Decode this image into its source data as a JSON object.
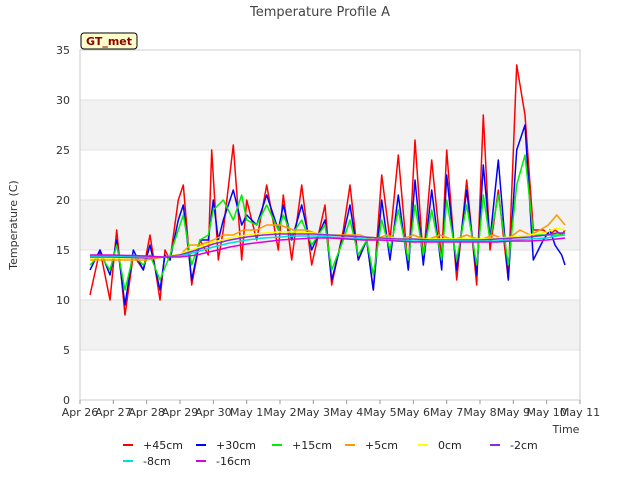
{
  "chart_data": {
    "type": "line",
    "title": "Temperature Profile A",
    "xlabel": "Time",
    "ylabel": "Temperature (C)",
    "ylim": [
      0,
      35
    ],
    "yticks": [
      0,
      5,
      10,
      15,
      20,
      25,
      30,
      35
    ],
    "xlim": [
      "Apr 26",
      "May 11"
    ],
    "xticks": [
      "Apr 26",
      "Apr 27",
      "Apr 28",
      "Apr 29",
      "Apr 30",
      "May 1",
      "May 2",
      "May 3",
      "May 4",
      "May 5",
      "May 6",
      "May 7",
      "May 8",
      "May 9",
      "May 10",
      "May 11"
    ],
    "badge": "GT_met",
    "grid": "horizontal alternating bands",
    "legend_position": "bottom",
    "series": [
      {
        "name": "+45cm",
        "color": "#ff0000",
        "x": [
          0.3,
          0.6,
          0.9,
          1.1,
          1.35,
          1.6,
          1.9,
          2.1,
          2.4,
          2.55,
          2.7,
          2.95,
          3.1,
          3.35,
          3.6,
          3.85,
          3.95,
          4.15,
          4.3,
          4.6,
          4.85,
          5.0,
          5.3,
          5.6,
          5.95,
          6.1,
          6.35,
          6.65,
          6.95,
          7.35,
          7.55,
          7.9,
          8.1,
          8.35,
          8.6,
          8.8,
          9.05,
          9.3,
          9.55,
          9.85,
          10.05,
          10.3,
          10.55,
          10.85,
          11.0,
          11.3,
          11.6,
          11.9,
          12.1,
          12.3,
          12.55,
          12.85,
          13.1,
          13.35,
          13.6,
          13.9,
          14.1,
          14.25,
          14.45,
          14.55
        ],
        "y": [
          10.5,
          15.0,
          10.0,
          17.0,
          8.5,
          14.5,
          13.0,
          16.5,
          10.0,
          15.0,
          14.0,
          20.0,
          21.5,
          11.5,
          16.0,
          14.5,
          25.0,
          14.0,
          17.0,
          25.5,
          14.0,
          20.0,
          16.0,
          21.5,
          15.0,
          20.5,
          14.0,
          21.5,
          13.5,
          19.5,
          11.5,
          17.0,
          21.5,
          14.0,
          16.0,
          11.0,
          22.5,
          16.0,
          24.5,
          13.0,
          26.0,
          14.0,
          24.0,
          14.0,
          25.0,
          12.0,
          22.0,
          11.5,
          28.5,
          15.0,
          21.0,
          12.0,
          33.5,
          28.5,
          17.0,
          17.0,
          16.5,
          17.0,
          16.5,
          17.0
        ]
      },
      {
        "name": "+30cm",
        "color": "#0000ff",
        "x": [
          0.3,
          0.6,
          0.9,
          1.1,
          1.35,
          1.6,
          1.9,
          2.1,
          2.4,
          2.55,
          2.7,
          2.95,
          3.1,
          3.35,
          3.6,
          3.85,
          4.0,
          4.15,
          4.3,
          4.6,
          4.85,
          5.0,
          5.3,
          5.6,
          5.95,
          6.1,
          6.35,
          6.65,
          6.95,
          7.35,
          7.55,
          7.9,
          8.1,
          8.35,
          8.6,
          8.8,
          9.05,
          9.3,
          9.55,
          9.85,
          10.05,
          10.3,
          10.55,
          10.85,
          11.0,
          11.3,
          11.6,
          11.9,
          12.1,
          12.3,
          12.55,
          12.85,
          13.1,
          13.35,
          13.6,
          13.9,
          14.1,
          14.25,
          14.45,
          14.55
        ],
        "y": [
          13.0,
          15.0,
          12.5,
          16.0,
          9.5,
          15.0,
          13.0,
          15.5,
          11.0,
          14.5,
          14.0,
          18.0,
          19.5,
          12.0,
          16.0,
          16.0,
          20.0,
          16.0,
          18.0,
          21.0,
          17.5,
          18.5,
          17.5,
          20.5,
          17.0,
          19.5,
          16.0,
          19.5,
          15.0,
          18.0,
          12.0,
          16.5,
          19.5,
          14.0,
          16.0,
          11.0,
          20.0,
          14.0,
          20.5,
          13.0,
          22.0,
          13.5,
          21.0,
          13.0,
          22.5,
          13.0,
          21.0,
          12.5,
          23.5,
          16.0,
          24.0,
          12.0,
          25.0,
          27.5,
          14.0,
          16.0,
          17.0,
          15.5,
          14.5,
          13.5
        ]
      },
      {
        "name": "+15cm",
        "color": "#00ee00",
        "x": [
          0.3,
          0.6,
          0.9,
          1.1,
          1.35,
          1.6,
          1.9,
          2.1,
          2.4,
          2.7,
          2.95,
          3.1,
          3.35,
          3.6,
          3.85,
          4.0,
          4.3,
          4.6,
          4.85,
          5.0,
          5.3,
          5.6,
          5.95,
          6.1,
          6.35,
          6.65,
          6.95,
          7.35,
          7.55,
          7.9,
          8.1,
          8.35,
          8.6,
          8.8,
          9.05,
          9.3,
          9.55,
          9.85,
          10.05,
          10.3,
          10.55,
          10.85,
          11.0,
          11.3,
          11.6,
          11.9,
          12.1,
          12.3,
          12.55,
          12.85,
          13.1,
          13.35,
          13.6,
          13.9,
          14.1,
          14.3,
          14.55
        ],
        "y": [
          13.5,
          14.5,
          13.0,
          15.5,
          11.0,
          14.5,
          13.5,
          14.5,
          12.0,
          14.5,
          17.0,
          18.5,
          13.5,
          16.0,
          16.5,
          19.0,
          20.0,
          18.0,
          20.5,
          18.0,
          17.5,
          19.5,
          17.0,
          18.5,
          16.5,
          18.0,
          15.5,
          17.5,
          13.0,
          16.0,
          18.0,
          14.5,
          16.0,
          12.5,
          18.0,
          15.0,
          19.0,
          14.0,
          19.5,
          14.5,
          19.0,
          14.0,
          20.0,
          14.0,
          19.5,
          13.5,
          20.5,
          16.0,
          20.5,
          13.5,
          21.5,
          24.5,
          16.5,
          16.5,
          16.5,
          16.5,
          16.5
        ]
      },
      {
        "name": "+5cm",
        "color": "#ff9900",
        "x": [
          0.3,
          1.0,
          2.0,
          2.5,
          3.0,
          3.3,
          3.6,
          4.0,
          4.3,
          4.6,
          4.9,
          5.3,
          5.6,
          6.0,
          6.4,
          6.8,
          7.2,
          7.6,
          8.0,
          8.4,
          8.8,
          9.2,
          9.6,
          10.0,
          10.4,
          10.8,
          11.2,
          11.6,
          12.0,
          12.4,
          12.8,
          13.2,
          13.5,
          13.8,
          14.05,
          14.3,
          14.55
        ],
        "y": [
          14.0,
          14.0,
          14.0,
          14.3,
          14.5,
          15.5,
          15.5,
          16.0,
          16.5,
          16.5,
          17.0,
          17.0,
          17.5,
          17.5,
          17.0,
          17.0,
          16.5,
          16.5,
          16.5,
          16.5,
          16.0,
          16.5,
          16.0,
          16.5,
          16.0,
          16.5,
          16.0,
          16.5,
          16.0,
          16.5,
          16.0,
          17.0,
          16.5,
          17.0,
          17.5,
          18.5,
          17.5
        ]
      },
      {
        "name": "0cm",
        "color": "#ffff00",
        "x": [
          0.3,
          1.0,
          2.0,
          2.5,
          3.0,
          3.5,
          4.0,
          4.5,
          5.0,
          5.5,
          6.0,
          6.5,
          7.0,
          7.5,
          8.0,
          8.5,
          9.0,
          9.5,
          10.0,
          10.5,
          11.0,
          11.5,
          12.0,
          12.5,
          13.0,
          13.5,
          14.0,
          14.3,
          14.55
        ],
        "y": [
          14.2,
          14.2,
          14.2,
          14.3,
          14.6,
          15.2,
          15.8,
          16.2,
          16.5,
          16.7,
          16.8,
          16.8,
          16.7,
          16.5,
          16.4,
          16.3,
          16.2,
          16.2,
          16.1,
          16.1,
          16.1,
          16.1,
          16.1,
          16.2,
          16.3,
          16.5,
          16.8,
          17.2,
          17.0
        ]
      },
      {
        "name": "-2cm",
        "color": "#8a2be2",
        "x": [
          0.3,
          1.0,
          2.0,
          2.5,
          3.0,
          3.5,
          4.0,
          4.5,
          5.0,
          5.5,
          6.0,
          6.5,
          7.0,
          7.5,
          8.0,
          8.5,
          9.0,
          9.5,
          10.0,
          10.5,
          11.0,
          11.5,
          12.0,
          12.5,
          13.0,
          13.5,
          14.0,
          14.3,
          14.55
        ],
        "y": [
          14.3,
          14.3,
          14.2,
          14.3,
          14.5,
          15.0,
          15.6,
          16.0,
          16.3,
          16.5,
          16.6,
          16.6,
          16.6,
          16.5,
          16.4,
          16.3,
          16.2,
          16.1,
          16.1,
          16.0,
          16.0,
          16.0,
          16.0,
          16.1,
          16.2,
          16.3,
          16.5,
          16.7,
          16.7
        ]
      },
      {
        "name": "-8cm",
        "color": "#00dddd",
        "x": [
          0.3,
          1.0,
          2.0,
          2.5,
          3.0,
          3.5,
          4.0,
          4.5,
          5.0,
          5.5,
          6.0,
          6.5,
          7.0,
          7.5,
          8.0,
          8.5,
          9.0,
          9.5,
          10.0,
          10.5,
          11.0,
          11.5,
          12.0,
          12.5,
          13.0,
          13.5,
          14.0,
          14.3,
          14.55
        ],
        "y": [
          14.4,
          14.4,
          14.3,
          14.3,
          14.4,
          14.8,
          15.3,
          15.7,
          16.0,
          16.2,
          16.3,
          16.4,
          16.4,
          16.3,
          16.2,
          16.1,
          16.0,
          16.0,
          15.9,
          15.9,
          15.9,
          15.9,
          15.9,
          15.9,
          16.0,
          16.1,
          16.2,
          16.4,
          16.5
        ]
      },
      {
        "name": "-16cm",
        "color": "#dd00dd",
        "x": [
          0.3,
          1.0,
          2.0,
          2.5,
          3.0,
          3.5,
          4.0,
          4.5,
          5.0,
          5.5,
          6.0,
          6.5,
          7.0,
          7.5,
          8.0,
          8.5,
          9.0,
          9.5,
          10.0,
          10.5,
          11.0,
          11.5,
          12.0,
          12.5,
          13.0,
          13.5,
          14.0,
          14.3,
          14.55
        ],
        "y": [
          14.5,
          14.5,
          14.4,
          14.3,
          14.3,
          14.5,
          14.9,
          15.3,
          15.6,
          15.8,
          16.0,
          16.1,
          16.2,
          16.2,
          16.1,
          16.0,
          16.0,
          15.9,
          15.8,
          15.8,
          15.8,
          15.8,
          15.8,
          15.8,
          15.9,
          15.9,
          16.0,
          16.1,
          16.2
        ]
      }
    ]
  }
}
